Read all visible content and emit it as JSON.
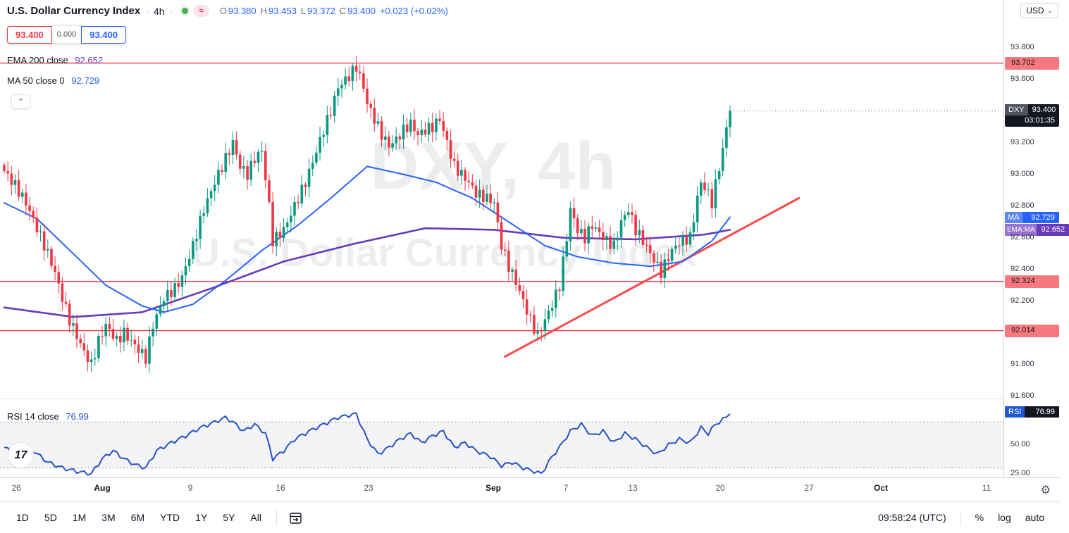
{
  "header": {
    "title": "U.S. Dollar Currency Index",
    "interval": "4h",
    "dot_separator": "·",
    "status_pill": "≈",
    "ohlc": {
      "labels": [
        "O",
        "H",
        "L",
        "C"
      ],
      "open": "93.380",
      "high": "93.453",
      "low": "93.372",
      "close": "93.400",
      "change": "+0.023 (+0.02%)"
    },
    "sell_price": "93.400",
    "spread": "0.000",
    "buy_price": "93.400",
    "ema_label": "EMA 200 close",
    "ema_value": "92.652",
    "ma_label": "MA 50 close 0",
    "ma_value": "92.729"
  },
  "top_right": {
    "currency_button": "USD"
  },
  "axis_badges": {
    "symbol": "DXY",
    "price": "93.400",
    "countdown": "03:01:35",
    "ma_label": "MA",
    "ma_value": "92.729",
    "ema_label": "EMA:MA",
    "ema_value": "92.652",
    "rsi_label": "RSI",
    "rsi_value": "76.99"
  },
  "rsi_legend": {
    "label": "RSI 14 close",
    "value": "76.99"
  },
  "toolbar": {
    "ranges": [
      "1D",
      "5D",
      "1M",
      "3M",
      "6M",
      "YTD",
      "1Y",
      "5Y",
      "All"
    ],
    "time": "09:58:24 (UTC)",
    "percent": "%",
    "log": "log",
    "auto": "auto"
  },
  "icons": {
    "collapse": "⌃",
    "caret_down": "⌄",
    "gear": "⚙",
    "tv_logo": "17"
  },
  "chart_data": {
    "type": "candlestick",
    "symbol": "DXY",
    "interval": "4h",
    "title": "U.S. Dollar Currency Index",
    "watermark": [
      "DXY, 4h",
      "U.S. Dollar Currency Index"
    ],
    "current": {
      "open": 93.38,
      "high": 93.453,
      "low": 93.372,
      "close": 93.4,
      "change": 0.023,
      "change_pct": 0.02
    },
    "y_axis": {
      "min": 91.59,
      "max": 94.1,
      "ticks": [
        {
          "label": "93.800",
          "price": 93.8
        },
        {
          "label": "93.600",
          "price": 93.6
        },
        {
          "label": "93.200",
          "price": 93.2
        },
        {
          "label": "93.000",
          "price": 93.0
        },
        {
          "label": "92.800",
          "price": 92.8
        },
        {
          "label": "92.600",
          "price": 92.6
        },
        {
          "label": "92.400",
          "price": 92.4
        },
        {
          "label": "92.200",
          "price": 92.2
        },
        {
          "label": "91.800",
          "price": 91.8
        },
        {
          "label": "91.600",
          "price": 91.6
        }
      ]
    },
    "x_axis": {
      "labels": [
        {
          "label": "26",
          "x": 23
        },
        {
          "label": "Aug",
          "x": 145,
          "major": true
        },
        {
          "label": "9",
          "x": 270
        },
        {
          "label": "16",
          "x": 398
        },
        {
          "label": "23",
          "x": 523
        },
        {
          "label": "Sep",
          "x": 700,
          "major": true
        },
        {
          "label": "7",
          "x": 803
        },
        {
          "label": "13",
          "x": 898
        },
        {
          "label": "20",
          "x": 1022
        },
        {
          "label": "27",
          "x": 1148
        },
        {
          "label": "Oct",
          "x": 1250,
          "major": true
        },
        {
          "label": "11",
          "x": 1400
        }
      ]
    },
    "levels": [
      {
        "label": "93.702",
        "price": 93.702
      },
      {
        "label": "92.324",
        "price": 92.324
      },
      {
        "label": "92.014",
        "price": 92.014
      }
    ],
    "trendline": {
      "bar1": 138,
      "price1": 91.85,
      "bar2": 219,
      "price2": 92.85
    },
    "series": {
      "price_path": [
        [
          0,
          93.02
        ],
        [
          3,
          92.93
        ],
        [
          6,
          92.82
        ],
        [
          9,
          92.66
        ],
        [
          12,
          92.5
        ],
        [
          14,
          92.38
        ],
        [
          16,
          92.22
        ],
        [
          18,
          92.08
        ],
        [
          20,
          91.98
        ],
        [
          22,
          91.88
        ],
        [
          24,
          91.8
        ],
        [
          26,
          91.95
        ],
        [
          28,
          92.05
        ],
        [
          31,
          91.95
        ],
        [
          33,
          92.0
        ],
        [
          36,
          91.92
        ],
        [
          39,
          91.84
        ],
        [
          41,
          92.05
        ],
        [
          44,
          92.22
        ],
        [
          47,
          92.28
        ],
        [
          49,
          92.35
        ],
        [
          52,
          92.55
        ],
        [
          55,
          92.78
        ],
        [
          58,
          92.95
        ],
        [
          61,
          93.1
        ],
        [
          63,
          93.2
        ],
        [
          65,
          93.05
        ],
        [
          67,
          93.0
        ],
        [
          69,
          93.1
        ],
        [
          71,
          93.15
        ],
        [
          73,
          92.8
        ],
        [
          74,
          92.58
        ],
        [
          77,
          92.65
        ],
        [
          79,
          92.75
        ],
        [
          81,
          92.85
        ],
        [
          83,
          92.95
        ],
        [
          85,
          93.08
        ],
        [
          88,
          93.28
        ],
        [
          90,
          93.4
        ],
        [
          92,
          93.55
        ],
        [
          95,
          93.62
        ],
        [
          97,
          93.68
        ],
        [
          99,
          93.55
        ],
        [
          100,
          93.45
        ],
        [
          102,
          93.35
        ],
        [
          104,
          93.25
        ],
        [
          106,
          93.18
        ],
        [
          108,
          93.22
        ],
        [
          110,
          93.28
        ],
        [
          112,
          93.32
        ],
        [
          114,
          93.25
        ],
        [
          116,
          93.28
        ],
        [
          118,
          93.3
        ],
        [
          120,
          93.35
        ],
        [
          122,
          93.2
        ],
        [
          124,
          93.05
        ],
        [
          126,
          93.0
        ],
        [
          128,
          92.95
        ],
        [
          130,
          92.88
        ],
        [
          133,
          92.85
        ],
        [
          135,
          92.82
        ],
        [
          137,
          92.55
        ],
        [
          139,
          92.42
        ],
        [
          141,
          92.32
        ],
        [
          143,
          92.2
        ],
        [
          145,
          92.08
        ],
        [
          147,
          91.98
        ],
        [
          149,
          92.08
        ],
        [
          151,
          92.18
        ],
        [
          153,
          92.3
        ],
        [
          155,
          92.6
        ],
        [
          156,
          92.78
        ],
        [
          158,
          92.65
        ],
        [
          160,
          92.6
        ],
        [
          162,
          92.68
        ],
        [
          164,
          92.63
        ],
        [
          166,
          92.58
        ],
        [
          168,
          92.55
        ],
        [
          170,
          92.7
        ],
        [
          172,
          92.78
        ],
        [
          174,
          92.65
        ],
        [
          176,
          92.58
        ],
        [
          178,
          92.5
        ],
        [
          181,
          92.38
        ],
        [
          183,
          92.48
        ],
        [
          185,
          92.55
        ],
        [
          187,
          92.58
        ],
        [
          189,
          92.6
        ],
        [
          191,
          92.85
        ],
        [
          192,
          92.95
        ],
        [
          194,
          92.88
        ],
        [
          195,
          92.82
        ],
        [
          197,
          93.05
        ],
        [
          198,
          93.15
        ],
        [
          199,
          93.3
        ],
        [
          200,
          93.4
        ]
      ],
      "ma50": {
        "name": "MA 50",
        "color": "#2962ff",
        "last": 92.729,
        "points": [
          [
            0,
            92.82
          ],
          [
            9,
            92.72
          ],
          [
            19,
            92.5
          ],
          [
            28,
            92.3
          ],
          [
            38,
            92.17
          ],
          [
            44,
            92.13
          ],
          [
            52,
            92.18
          ],
          [
            61,
            92.33
          ],
          [
            71,
            92.52
          ],
          [
            81,
            92.68
          ],
          [
            90,
            92.85
          ],
          [
            100,
            93.05
          ],
          [
            110,
            93.0
          ],
          [
            119,
            92.95
          ],
          [
            129,
            92.85
          ],
          [
            139,
            92.7
          ],
          [
            149,
            92.55
          ],
          [
            158,
            92.48
          ],
          [
            168,
            92.44
          ],
          [
            178,
            92.42
          ],
          [
            187,
            92.45
          ],
          [
            195,
            92.58
          ],
          [
            200,
            92.73
          ]
        ]
      },
      "ema200": {
        "name": "EMA 200",
        "color": "#673ab7",
        "last": 92.652,
        "points": [
          [
            0,
            92.16
          ],
          [
            19,
            92.1
          ],
          [
            38,
            92.13
          ],
          [
            57,
            92.28
          ],
          [
            77,
            92.45
          ],
          [
            96,
            92.56
          ],
          [
            116,
            92.66
          ],
          [
            135,
            92.65
          ],
          [
            154,
            92.6
          ],
          [
            174,
            92.59
          ],
          [
            193,
            92.62
          ],
          [
            200,
            92.65
          ]
        ]
      },
      "rsi": {
        "name": "RSI 14",
        "color": "#2452c4",
        "last": 76.99,
        "axis": {
          "min": 21.8,
          "max": 90.5
        },
        "band": [
          30,
          70
        ],
        "ticks": [
          {
            "label": "50.00",
            "value": 50
          },
          {
            "label": "25.00",
            "value": 25
          }
        ],
        "points": [
          [
            0,
            48
          ],
          [
            4,
            40
          ],
          [
            8,
            45
          ],
          [
            12,
            35
          ],
          [
            16,
            30
          ],
          [
            20,
            27
          ],
          [
            24,
            25
          ],
          [
            27,
            38
          ],
          [
            30,
            45
          ],
          [
            33,
            38
          ],
          [
            36,
            33
          ],
          [
            39,
            30
          ],
          [
            42,
            45
          ],
          [
            46,
            52
          ],
          [
            50,
            58
          ],
          [
            54,
            65
          ],
          [
            58,
            70
          ],
          [
            61,
            74
          ],
          [
            63,
            70
          ],
          [
            66,
            62
          ],
          [
            69,
            68
          ],
          [
            72,
            60
          ],
          [
            74,
            38
          ],
          [
            77,
            45
          ],
          [
            80,
            55
          ],
          [
            84,
            62
          ],
          [
            88,
            68
          ],
          [
            92,
            74
          ],
          [
            95,
            76
          ],
          [
            97,
            77
          ],
          [
            100,
            55
          ],
          [
            103,
            42
          ],
          [
            106,
            48
          ],
          [
            109,
            55
          ],
          [
            112,
            60
          ],
          [
            115,
            52
          ],
          [
            118,
            58
          ],
          [
            121,
            62
          ],
          [
            124,
            48
          ],
          [
            127,
            52
          ],
          [
            130,
            45
          ],
          [
            134,
            40
          ],
          [
            137,
            32
          ],
          [
            140,
            35
          ],
          [
            143,
            30
          ],
          [
            146,
            27
          ],
          [
            148,
            25
          ],
          [
            151,
            40
          ],
          [
            153,
            48
          ],
          [
            156,
            62
          ],
          [
            159,
            68
          ],
          [
            162,
            58
          ],
          [
            165,
            62
          ],
          [
            168,
            52
          ],
          [
            171,
            60
          ],
          [
            174,
            55
          ],
          [
            177,
            48
          ],
          [
            180,
            42
          ],
          [
            183,
            50
          ],
          [
            186,
            55
          ],
          [
            189,
            52
          ],
          [
            192,
            65
          ],
          [
            194,
            60
          ],
          [
            196,
            68
          ],
          [
            198,
            72
          ],
          [
            200,
            77
          ]
        ]
      }
    },
    "colors": {
      "up": "#089981",
      "down": "#f23645",
      "level": "#f23645",
      "trend": "#ff4a4a",
      "ma": "#2962ff",
      "ema": "#673ab7",
      "rsi": "#2452c4",
      "watermark": "rgba(19,23,39,0.08)"
    },
    "render": {
      "bars": 201,
      "wiggle": 0.035,
      "wick": 0.05,
      "rsi_jitter": 1.8
    }
  }
}
